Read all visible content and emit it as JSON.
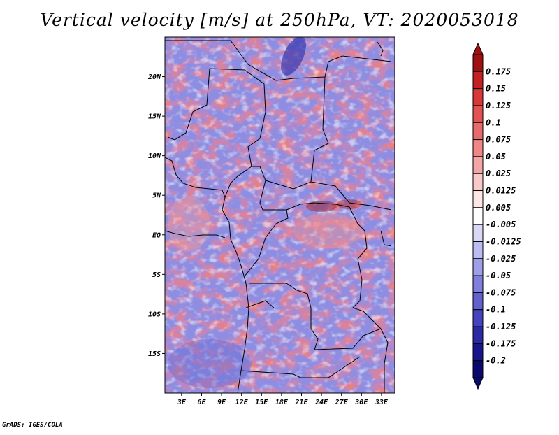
{
  "title": "Vertical velocity [m/s] at 250hPa, VT: 2020053018",
  "credit": "GrADS: IGES/COLA",
  "map": {
    "lat_labels": [
      "20N",
      "15N",
      "10N",
      "5N",
      "EQ",
      "5S",
      "10S",
      "15S"
    ],
    "lat_values": [
      20,
      15,
      10,
      5,
      0,
      -5,
      -10,
      -15
    ],
    "lon_labels": [
      "3E",
      "6E",
      "9E",
      "12E",
      "15E",
      "18E",
      "21E",
      "24E",
      "27E",
      "30E",
      "33E"
    ],
    "lon_values": [
      3,
      6,
      9,
      12,
      15,
      18,
      21,
      24,
      27,
      30,
      33
    ],
    "lon_range": [
      0.5,
      35
    ],
    "lat_range": [
      -20,
      25
    ]
  },
  "colorbar": {
    "labels": [
      "0.175",
      "0.15",
      "0.125",
      "0.1",
      "0.075",
      "0.05",
      "0.025",
      "0.0125",
      "0.005",
      "-0.005",
      "-0.0125",
      "-0.025",
      "-0.05",
      "-0.075",
      "-0.1",
      "-0.125",
      "-0.175",
      "-0.2"
    ],
    "colors": [
      "#a01010",
      "#c42222",
      "#d83838",
      "#e25252",
      "#e86a6a",
      "#ef8787",
      "#f4a6a6",
      "#f9c8c8",
      "#fde6e6",
      "#ffffff",
      "#d9d9f6",
      "#bcbcf0",
      "#9f9fe8",
      "#8080dc",
      "#6262cf",
      "#4444bf",
      "#2a2aa6",
      "#16168a",
      "#0a0a6e"
    ]
  }
}
